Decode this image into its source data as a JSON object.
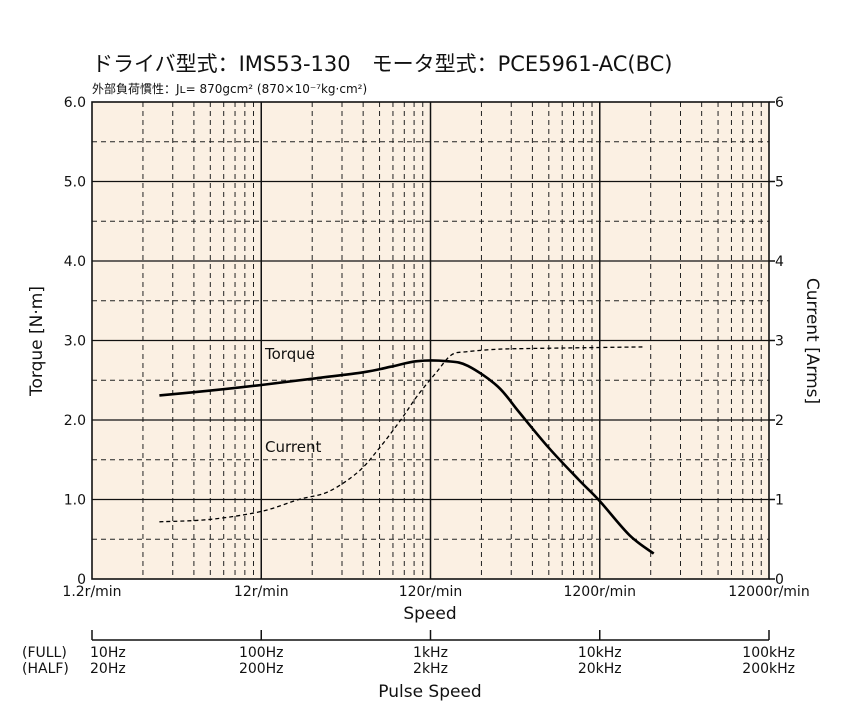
{
  "chart_data": {
    "type": "line",
    "title": "ドライバ型式：IMS53-130　モータ型式：PCE5961-AC(BC)",
    "subtitle": "外部負荷慣性：Jʟ= 870gcm² (870×10⁻⁷kg·cm²)",
    "xlabel": "Speed",
    "ylabel": "Torque [N·m]",
    "y2label": "Current [Arms]",
    "x_scale": "log",
    "x_range_rpm": [
      1.2,
      12000
    ],
    "y_range": [
      0,
      6
    ],
    "y2_range": [
      0,
      6
    ],
    "x_ticks": [
      "1.2r/min",
      "12r/min",
      "120r/min",
      "1200r/min",
      "12000r/min"
    ],
    "x_tick_values": [
      1.2,
      12,
      120,
      1200,
      12000
    ],
    "y_ticks": [
      "0",
      "1.0",
      "2.0",
      "3.0",
      "4.0",
      "5.0",
      "6.0"
    ],
    "y_tick_values": [
      0,
      1,
      2,
      3,
      4,
      5,
      6
    ],
    "y2_ticks": [
      "0",
      "1",
      "2",
      "3",
      "4",
      "5",
      "6"
    ],
    "y2_tick_values": [
      0,
      1,
      2,
      3,
      4,
      5,
      6
    ],
    "grid": true,
    "pulse_axis": {
      "label": "Pulse Speed",
      "full_label": "(FULL)",
      "half_label": "(HALF)",
      "full_ticks": [
        "10Hz",
        "100Hz",
        "1kHz",
        "10kHz",
        "100kHz"
      ],
      "half_ticks": [
        "20Hz",
        "200Hz",
        "2kHz",
        "20kHz",
        "200kHz"
      ]
    },
    "series": [
      {
        "name": "Torque",
        "axis": "left",
        "style": "solid",
        "x": [
          3,
          6,
          12,
          24,
          48,
          70,
          100,
          150,
          200,
          300,
          400,
          600,
          900,
          1200,
          1800,
          2500
        ],
        "values": [
          2.31,
          2.37,
          2.44,
          2.52,
          2.6,
          2.67,
          2.74,
          2.74,
          2.68,
          2.42,
          2.1,
          1.65,
          1.25,
          0.98,
          0.55,
          0.32
        ]
      },
      {
        "name": "Current",
        "axis": "right",
        "style": "dashed",
        "x": [
          3,
          6,
          12,
          20,
          30,
          45,
          60,
          80,
          100,
          130,
          160,
          200,
          300,
          500,
          1000,
          2200
        ],
        "values": [
          0.72,
          0.75,
          0.85,
          1.0,
          1.1,
          1.35,
          1.65,
          2.0,
          2.3,
          2.6,
          2.82,
          2.86,
          2.89,
          2.9,
          2.91,
          2.92
        ]
      }
    ]
  },
  "colors": {
    "plot_background": "#fbf0e3",
    "frame": "#111111",
    "torque_line": "#000000",
    "current_line": "#000000"
  }
}
